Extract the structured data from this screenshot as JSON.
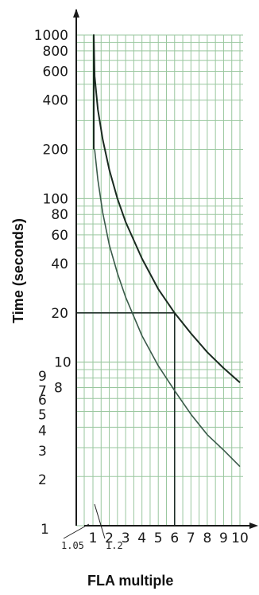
{
  "chart_data": {
    "type": "line",
    "xlabel": "FLA multiple",
    "ylabel": "Time (seconds)",
    "x_scale": "linear",
    "y_scale": "log",
    "xlim": [
      1,
      10
    ],
    "ylim": [
      1,
      1000
    ],
    "grid": true,
    "x_ticks": [
      "1",
      "2",
      "3",
      "4",
      "5",
      "6",
      "7",
      "8",
      "9",
      "10"
    ],
    "x_tick_values": [
      1,
      2,
      3,
      4,
      5,
      6,
      7,
      8,
      9,
      10
    ],
    "y_ticks": [
      "1000",
      "800",
      "600",
      "400",
      "200",
      "100",
      "80",
      "60",
      "40",
      "20",
      "10",
      "9",
      "8",
      "7",
      "6",
      "5",
      "4",
      "3",
      "2",
      "1"
    ],
    "y_tick_values": [
      1000,
      800,
      600,
      400,
      200,
      100,
      80,
      60,
      40,
      20,
      10,
      9,
      8,
      7,
      6,
      5,
      4,
      3,
      2,
      1
    ],
    "annotations": [
      "1.05",
      "1.2"
    ],
    "reference": {
      "x": 6,
      "y": 20
    },
    "series": [
      {
        "x": [
          1.05,
          1.05,
          1.1,
          1.3,
          1.6,
          2,
          2.5,
          3,
          4,
          5,
          6,
          7,
          8,
          9,
          10
        ],
        "y": [
          200,
          1000,
          560,
          350,
          230,
          150,
          100,
          72,
          43,
          28,
          20,
          15,
          11.5,
          9.2,
          7.5
        ],
        "color": "#1a2a20"
      },
      {
        "x": [
          1.1,
          1.3,
          1.6,
          2,
          2.5,
          3,
          4,
          5,
          6,
          7,
          8,
          9,
          10
        ],
        "y": [
          200,
          130,
          82,
          52,
          35,
          25,
          14.5,
          9.5,
          6.7,
          4.8,
          3.6,
          2.9,
          2.3
        ],
        "color": "#3a5a4a"
      }
    ],
    "reference_color": "#1f2f28",
    "grid_color": "#9ac79f",
    "axis_color": "#1a1a1a"
  }
}
